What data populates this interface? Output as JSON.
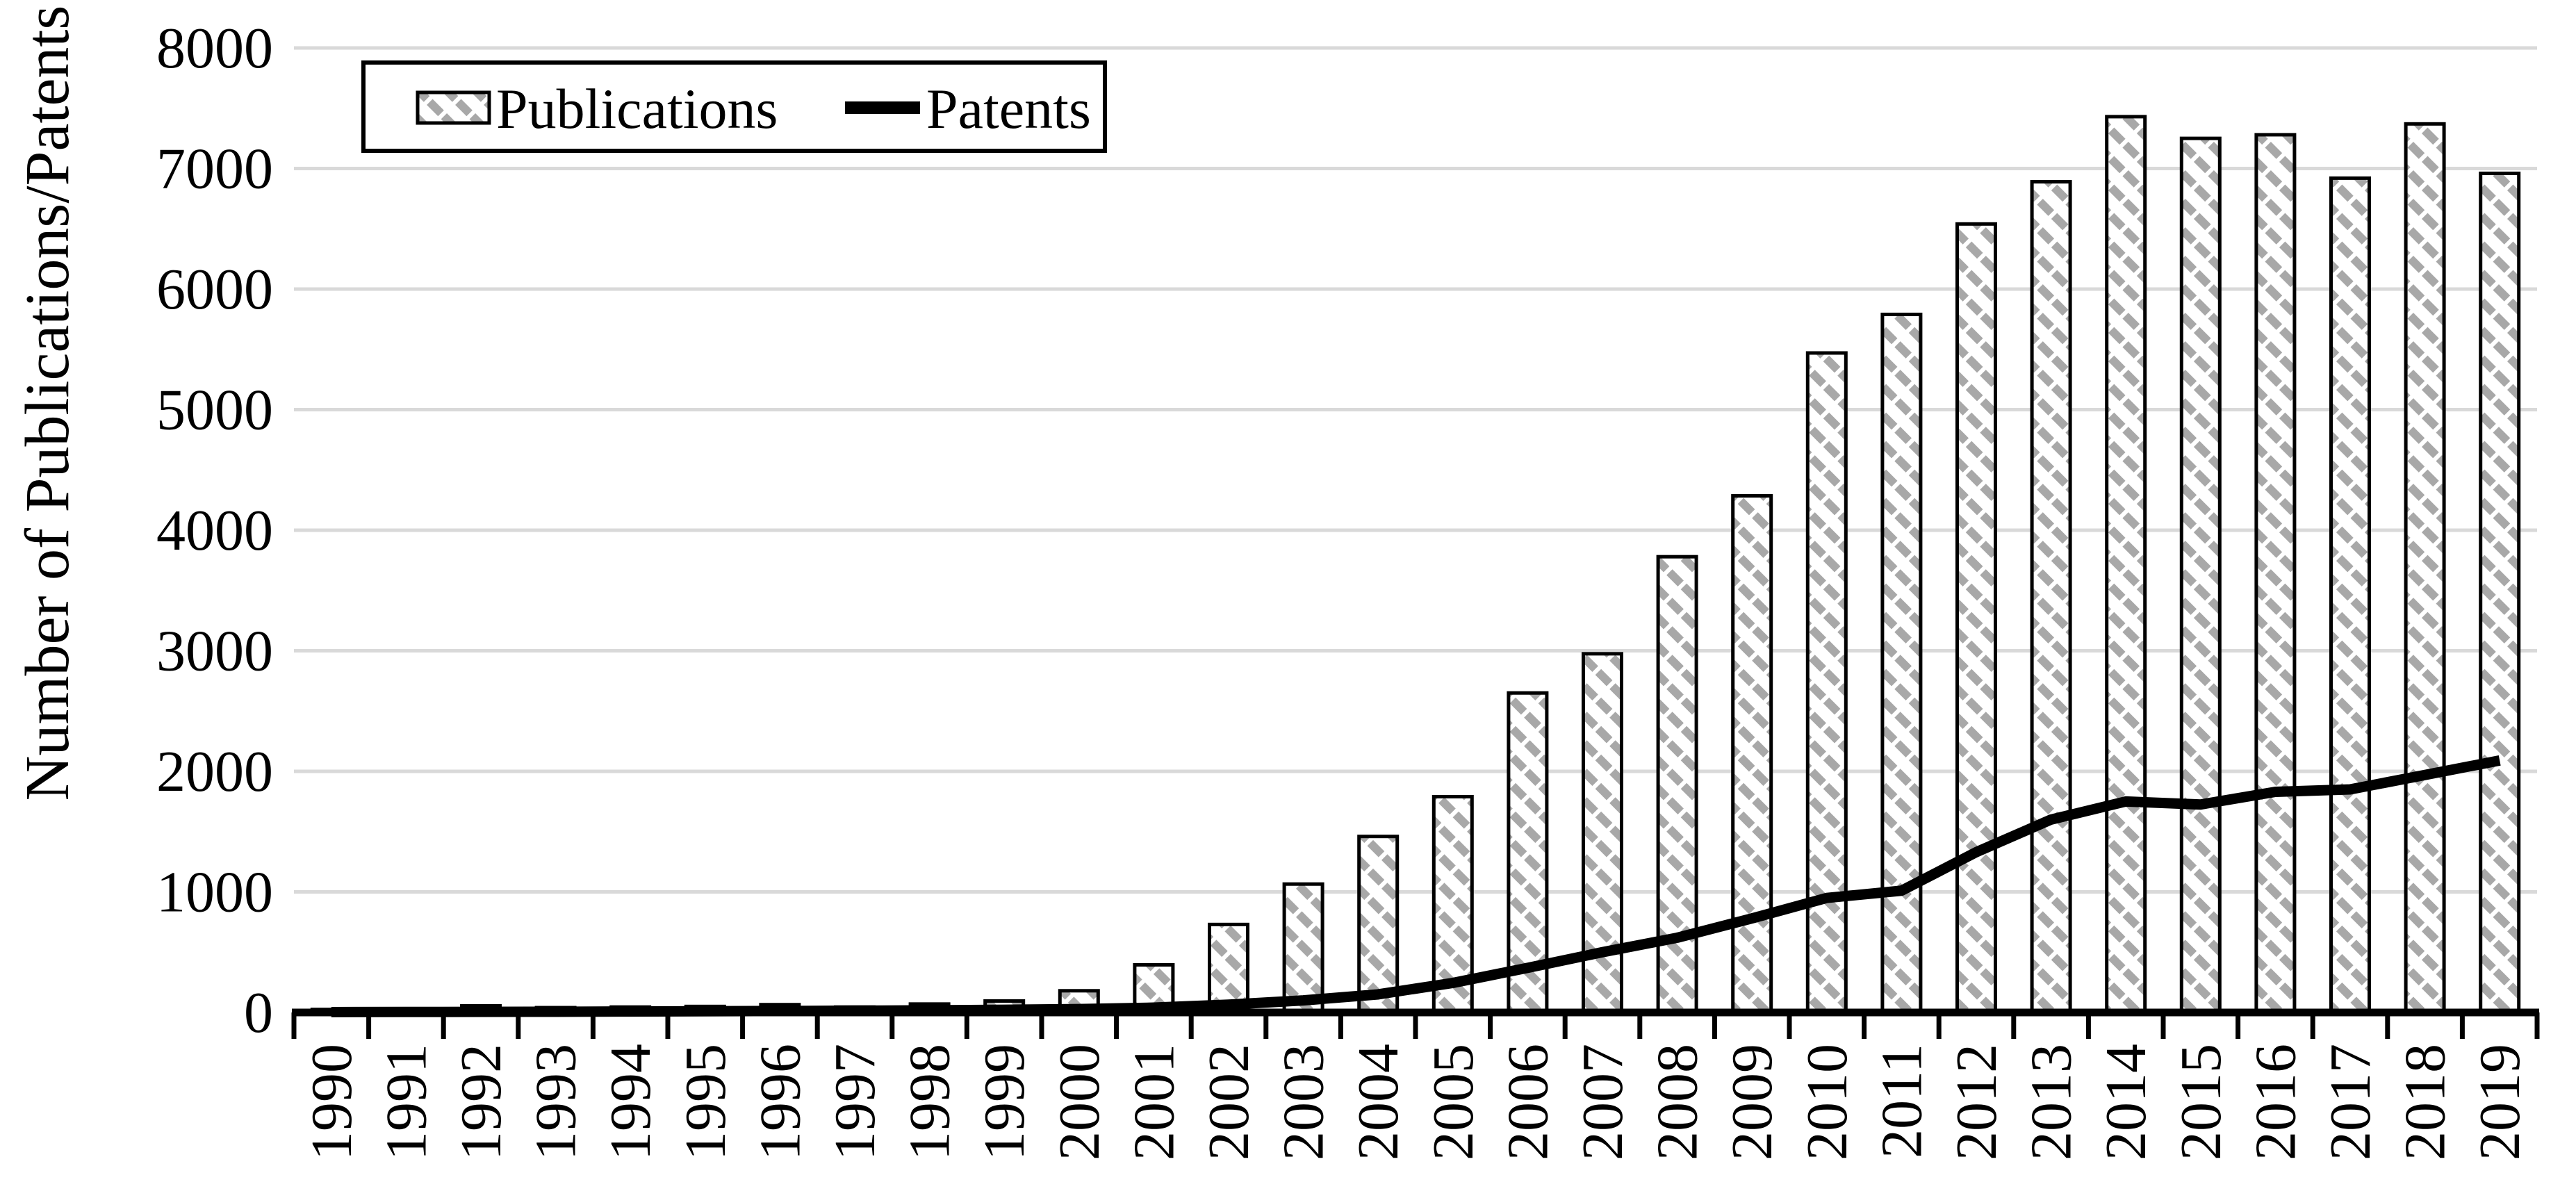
{
  "page": {
    "background": "#ffffff"
  },
  "chart_data": {
    "type": "bar+line",
    "title": "",
    "xlabel": "",
    "ylabel": "Number of Publications/Patents",
    "categories": [
      "1990",
      "1991",
      "1992",
      "1993",
      "1994",
      "1995",
      "1996",
      "1997",
      "1998",
      "1999",
      "2000",
      "2001",
      "2002",
      "2003",
      "2004",
      "2005",
      "2006",
      "2007",
      "2008",
      "2009",
      "2010",
      "2011",
      "2012",
      "2013",
      "2014",
      "2015",
      "2016",
      "2017",
      "2018",
      "2019"
    ],
    "series": [
      {
        "name": "Publications",
        "type": "bar",
        "fill": "diagonal-hatch",
        "hatch_color": "#a8a8a8",
        "border_color": "#000000",
        "values": [
          25,
          20,
          55,
          40,
          45,
          50,
          65,
          45,
          70,
          95,
          180,
          395,
          730,
          1065,
          1460,
          1790,
          2650,
          2975,
          3780,
          4285,
          5470,
          5790,
          6540,
          6890,
          7430,
          7250,
          7280,
          6920,
          7370,
          6960
        ]
      },
      {
        "name": "Patents",
        "type": "line",
        "color": "#000000",
        "values": [
          3,
          4,
          5,
          6,
          8,
          10,
          12,
          15,
          18,
          22,
          28,
          40,
          65,
          100,
          150,
          245,
          370,
          500,
          620,
          780,
          950,
          1010,
          1330,
          1600,
          1750,
          1725,
          1830,
          1850,
          1970,
          2090
        ]
      }
    ],
    "y_axis": {
      "min": 0,
      "max": 8000,
      "tick_step": 1000,
      "ticks": [
        0,
        1000,
        2000,
        3000,
        4000,
        5000,
        6000,
        7000,
        8000
      ]
    },
    "x_axis": {
      "tick_marks": "between-categories",
      "label_rotation_deg": -90
    },
    "grid": true,
    "gridline_color": "#d9d9d9",
    "axis_color": "#000000",
    "legend": {
      "position": "top-left",
      "border_color": "#000000",
      "background": "#ffffff",
      "labels": [
        "Publications",
        "Patents"
      ]
    }
  }
}
